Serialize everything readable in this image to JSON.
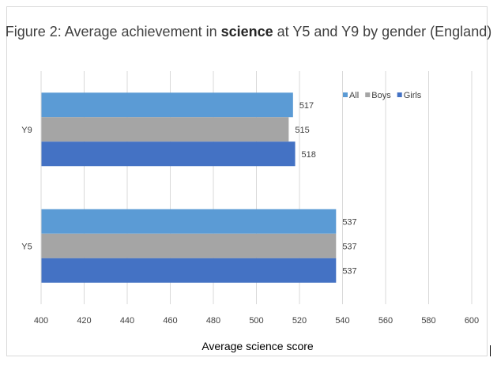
{
  "chart_data": {
    "type": "bar",
    "orientation": "horizontal",
    "title_parts": [
      {
        "text": "Figure 2: Average achievement in ",
        "bold": false
      },
      {
        "text": "science",
        "bold": true
      },
      {
        "text": " at Y5 and Y9 by gender (England)",
        "bold": false
      }
    ],
    "categories": [
      "Y9",
      "Y5"
    ],
    "series": [
      {
        "name": "All",
        "color": "#5b9bd5",
        "values": [
          517,
          537
        ]
      },
      {
        "name": "Boys",
        "color": "#a5a5a5",
        "values": [
          515,
          537
        ]
      },
      {
        "name": "Girls",
        "color": "#4472c4",
        "values": [
          518,
          537
        ]
      }
    ],
    "xlabel": "Average science score",
    "ylabel": "",
    "xlim": [
      400,
      600
    ],
    "xticks": [
      400,
      420,
      440,
      460,
      480,
      500,
      520,
      540,
      560,
      580,
      600
    ],
    "grid": "vertical",
    "legend_position": "top-right",
    "data_labels": true
  }
}
